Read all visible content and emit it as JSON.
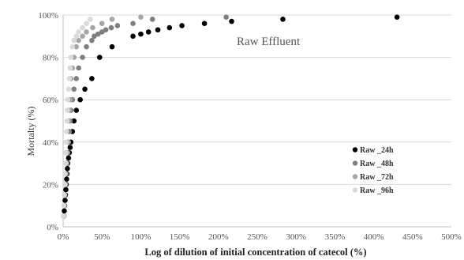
{
  "chart_data": {
    "type": "scatter",
    "title": "",
    "annotation": "Raw Effluent",
    "xlabel": "Log of dilution of initial concentration of catecol  (%)",
    "ylabel": "Mortalty (%)",
    "xlim": [
      0,
      500
    ],
    "ylim": [
      0,
      100
    ],
    "x_ticks": [
      "0%",
      "50%",
      "100%",
      "150%",
      "200%",
      "250%",
      "300%",
      "350%",
      "400%",
      "450%",
      "500%"
    ],
    "y_ticks": [
      "0%",
      "20%",
      "40%",
      "60%",
      "80%",
      "100%"
    ],
    "grid": {
      "horizontal": true,
      "vertical": false
    },
    "legend": "right",
    "series": [
      {
        "name": "Raw _24h",
        "color": "#000000",
        "x": [
          1,
          1.5,
          2,
          2.5,
          3,
          3.5,
          4,
          4.5,
          5,
          5.5,
          6,
          7,
          8,
          9,
          10,
          12,
          14,
          17,
          22,
          28,
          37,
          47,
          63,
          90,
          100,
          110,
          122,
          137,
          153,
          182,
          217,
          283,
          430
        ],
        "y": [
          5,
          7.5,
          10,
          12.5,
          15,
          17.5,
          20,
          22.5,
          25,
          27.5,
          30,
          32.5,
          35,
          37.5,
          40,
          45,
          50,
          55,
          60,
          65,
          70,
          80,
          85,
          90,
          91,
          92,
          93,
          94,
          95,
          96,
          97,
          98,
          99
        ]
      },
      {
        "name": "Raw _48h",
        "color": "#7f7f7f",
        "x": [
          1,
          1.5,
          2,
          3,
          4,
          5,
          6,
          7,
          8,
          9,
          10,
          12,
          14,
          17,
          20,
          25,
          30,
          37,
          40,
          45,
          50,
          55,
          62,
          70,
          90,
          115,
          210
        ],
        "y": [
          5,
          10,
          15,
          20,
          25,
          30,
          35,
          40,
          45,
          50,
          55,
          60,
          65,
          70,
          75,
          80,
          85,
          88,
          90,
          91,
          92,
          93,
          94,
          95,
          96,
          98,
          99
        ]
      },
      {
        "name": "Raw _72h",
        "color": "#a6a6a6",
        "x": [
          1,
          1.5,
          2,
          3,
          4,
          5,
          6,
          7,
          8,
          9,
          10,
          12,
          14,
          17,
          20,
          25,
          30,
          38,
          50,
          63,
          100
        ],
        "y": [
          5,
          10,
          15,
          20,
          30,
          35,
          40,
          50,
          55,
          60,
          70,
          75,
          80,
          85,
          88,
          90,
          92,
          94,
          96,
          98,
          99
        ]
      },
      {
        "name": "Raw _96h",
        "color": "#d9d9d9",
        "x": [
          0.5,
          1,
          1.5,
          2,
          2.5,
          3,
          3.5,
          4,
          4.5,
          5,
          5.5,
          6,
          7,
          8,
          9,
          10,
          12,
          14,
          17,
          20,
          25,
          30,
          35
        ],
        "y": [
          5,
          10,
          15,
          20,
          25,
          30,
          35,
          40,
          45,
          50,
          55,
          60,
          65,
          70,
          75,
          80,
          85,
          88,
          90,
          92,
          94,
          96,
          98
        ]
      }
    ]
  }
}
